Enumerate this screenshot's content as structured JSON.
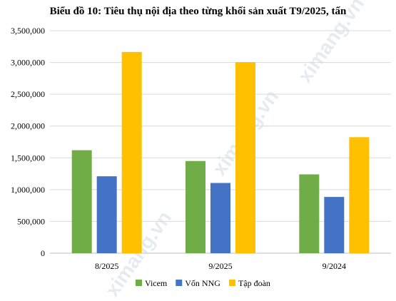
{
  "chart_data": {
    "type": "bar",
    "title": "Biểu đồ 10: Tiêu thụ nội địa theo từng khối sản xuất T9/2025, tấn",
    "categories": [
      "8/2025",
      "9/2025",
      "9/2024"
    ],
    "series": [
      {
        "name": "Vicem",
        "color": "#70ad47",
        "values": [
          1620000,
          1450000,
          1240000
        ]
      },
      {
        "name": "Vốn NNG",
        "color": "#4472c4",
        "values": [
          1210000,
          1105000,
          885000
        ]
      },
      {
        "name": "Tập đoàn",
        "color": "#ffc000",
        "values": [
          3165000,
          3005000,
          1825000
        ]
      }
    ],
    "ylim": [
      0,
      3500000
    ],
    "yticks": [
      "0",
      "500,000",
      "1,000,000",
      "1,500,000",
      "2,000,000",
      "2,500,000",
      "3,000,000",
      "3,500,000"
    ],
    "grid": true,
    "legend_position": "bottom"
  },
  "watermark": "ximang.vn"
}
